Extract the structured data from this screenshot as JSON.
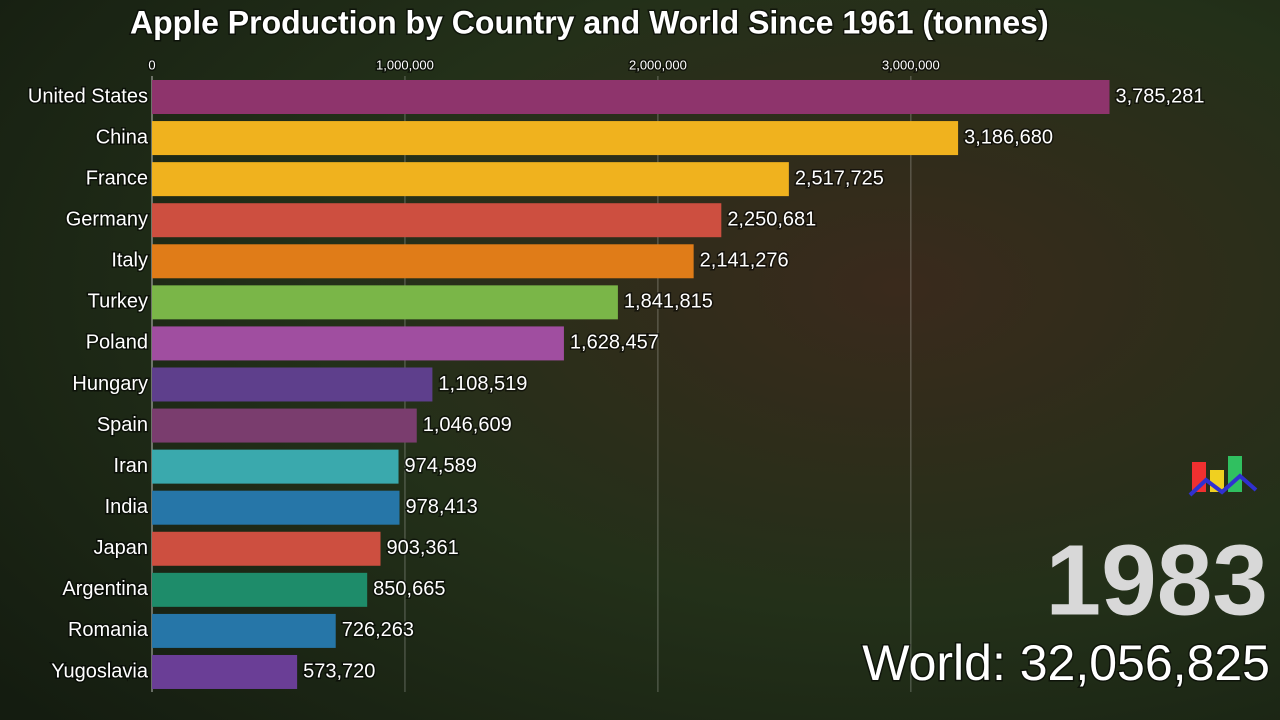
{
  "chart_data": {
    "type": "hbar",
    "title": "Apple Production by Country and World Since 1961 (tonnes)",
    "categories": [
      "United States",
      "China",
      "France",
      "Germany",
      "Italy",
      "Turkey",
      "Poland",
      "Hungary",
      "Spain",
      "Iran",
      "India",
      "Japan",
      "Argentina",
      "Romania",
      "Yugoslavia"
    ],
    "values": [
      3785281,
      3186680,
      2517725,
      2250681,
      2141276,
      1841815,
      1628457,
      1108519,
      1046609,
      974589,
      978413,
      903361,
      850665,
      726263,
      573720
    ],
    "value_labels": [
      "3,785,281",
      "3,186,680",
      "2,517,725",
      "2,250,681",
      "2,141,276",
      "1,841,815",
      "1,628,457",
      "1,108,519",
      "1,046,609",
      "974,589",
      "978,413",
      "903,361",
      "850,665",
      "726,263",
      "573,720"
    ],
    "colors": [
      "#8e346c",
      "#f0b21e",
      "#f0b21e",
      "#cd4f40",
      "#e07c18",
      "#7ab648",
      "#a04ea0",
      "#5e3f8c",
      "#7a3d6e",
      "#3aa9ad",
      "#2676a8",
      "#cd4f40",
      "#1e8c6a",
      "#2676a8",
      "#6a3e96"
    ],
    "xlim": [
      0,
      4400000
    ],
    "xticks": [
      0,
      {
        "value": 1000000,
        "label": "1,000,000"
      },
      {
        "value": 2000000,
        "label": "2,000,000"
      },
      {
        "value": 3000000,
        "label": "3,000,000"
      }
    ],
    "grid": true,
    "annotations": [
      "1983",
      "World: 32,056,825"
    ]
  }
}
